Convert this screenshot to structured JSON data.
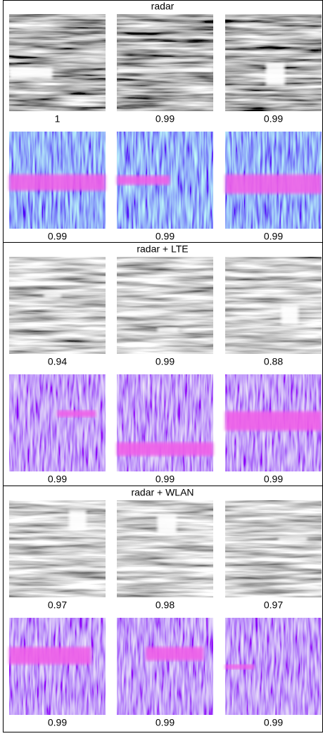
{
  "sections": [
    {
      "title": "radar",
      "rows": [
        {
          "captions": [
            "1",
            "0.99",
            "0.99"
          ]
        },
        {
          "captions": [
            "0.99",
            "0.99",
            "0.99"
          ]
        }
      ]
    },
    {
      "title": "radar + LTE",
      "rows": [
        {
          "captions": [
            "0.94",
            "0.99",
            "0.88"
          ]
        },
        {
          "captions": [
            "0.99",
            "0.99",
            "0.99"
          ]
        }
      ]
    },
    {
      "title": "radar + WLAN",
      "rows": [
        {
          "captions": [
            "0.97",
            "0.98",
            "0.97"
          ]
        },
        {
          "captions": [
            "0.99",
            "0.99",
            "0.99"
          ]
        }
      ]
    }
  ]
}
